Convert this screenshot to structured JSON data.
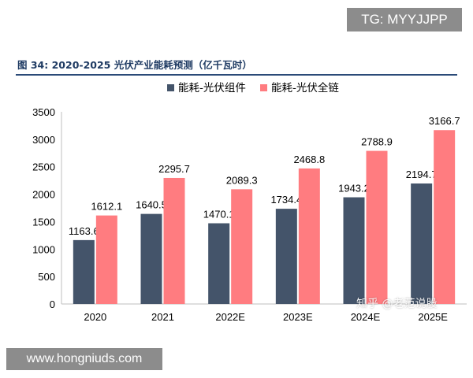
{
  "watermarks": {
    "top": "TG: MYYJJPP",
    "bottom": "www.hongniuds.com",
    "zhihu": "知乎 @老范说股"
  },
  "figure": {
    "title": "图 34:  2020-2025 光伏产业能耗预测（亿千瓦时）"
  },
  "chart_data": {
    "type": "bar",
    "categories": [
      "2020",
      "2021",
      "2022E",
      "2023E",
      "2024E",
      "2025E"
    ],
    "series": [
      {
        "name": "能耗-光伏组件",
        "values": [
          1163.6,
          1640.5,
          1470.1,
          1734.4,
          1943.2,
          2194.7
        ],
        "color": "#44546a"
      },
      {
        "name": "能耗-光伏全链",
        "values": [
          1612.1,
          2295.7,
          2089.3,
          2468.8,
          2788.9,
          3166.7
        ],
        "color": "#ff7c80"
      }
    ],
    "y_ticks": [
      0,
      500,
      1000,
      1500,
      2000,
      2500,
      3000,
      3500
    ],
    "ylim": [
      0,
      3500
    ],
    "grid": false,
    "legend": "top-center",
    "data_labels": [
      "1163.6",
      "1612.1",
      "1640.5",
      "2295.7",
      "1470.1",
      "2089.3",
      "1734.4",
      "2468.8",
      "1943.2",
      "2788.9",
      "2194.7",
      "3166.7"
    ]
  }
}
